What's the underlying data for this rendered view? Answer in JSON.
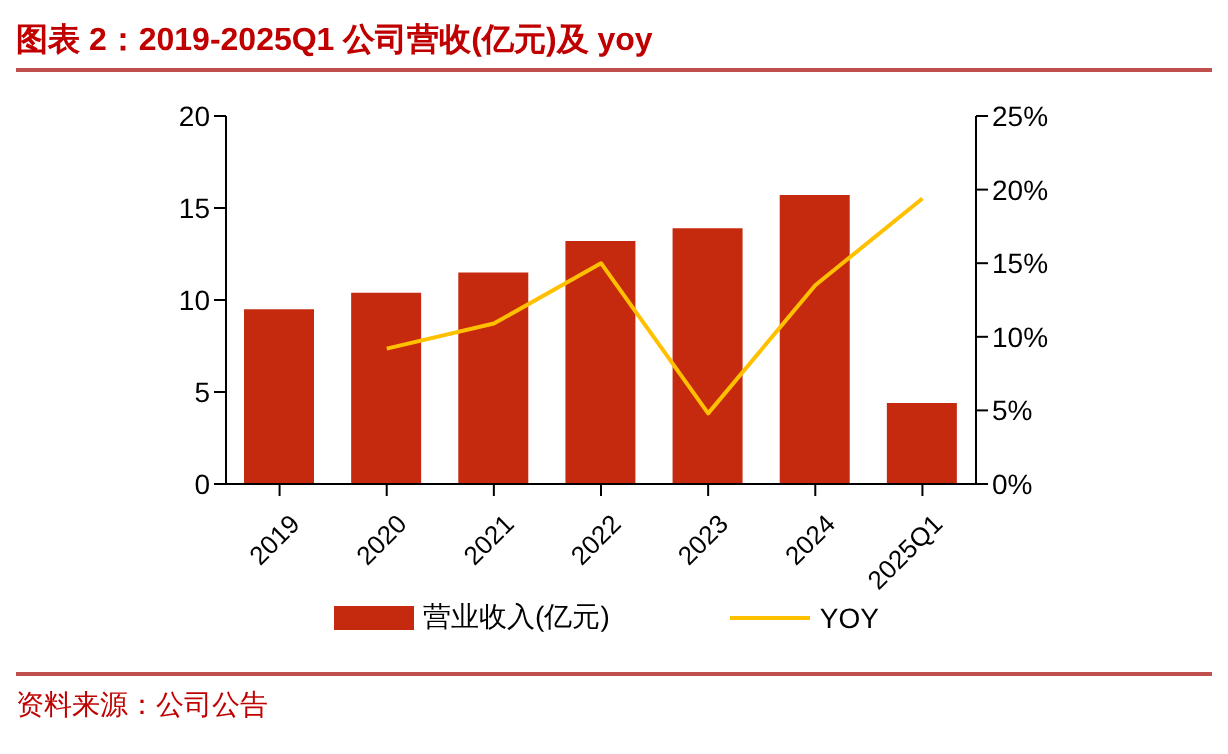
{
  "chart_data": {
    "type": "bar",
    "title": "图表 2：2019-2025Q1 公司营收(亿元)及 yoy",
    "categories": [
      "2019",
      "2020",
      "2021",
      "2022",
      "2023",
      "2024",
      "2025Q1"
    ],
    "series": [
      {
        "name": "营业收入(亿元)",
        "color": "#c62a0e",
        "values": [
          9.5,
          10.4,
          11.5,
          13.2,
          13.9,
          15.7,
          4.4
        ]
      },
      {
        "name": "YOY",
        "type": "line",
        "axis": "y2",
        "color": "#ffc000",
        "values": [
          null,
          9.2,
          10.9,
          15.0,
          4.8,
          13.5,
          19.4
        ]
      }
    ],
    "ylim": [
      0,
      20
    ],
    "yticks": [
      0,
      5,
      10,
      15,
      20
    ],
    "y2lim": [
      0,
      25
    ],
    "y2ticks": [
      {
        "value": 0,
        "label": "0%"
      },
      {
        "value": 5,
        "label": "5%"
      },
      {
        "value": 10,
        "label": "10%"
      },
      {
        "value": 15,
        "label": "15%"
      },
      {
        "value": 20,
        "label": "20%"
      },
      {
        "value": 25,
        "label": "25%"
      }
    ],
    "grid": false,
    "legend": "bottom",
    "marker": "none",
    "line_style": "solid",
    "annotations": [
      "资料来源：公司公告"
    ]
  }
}
